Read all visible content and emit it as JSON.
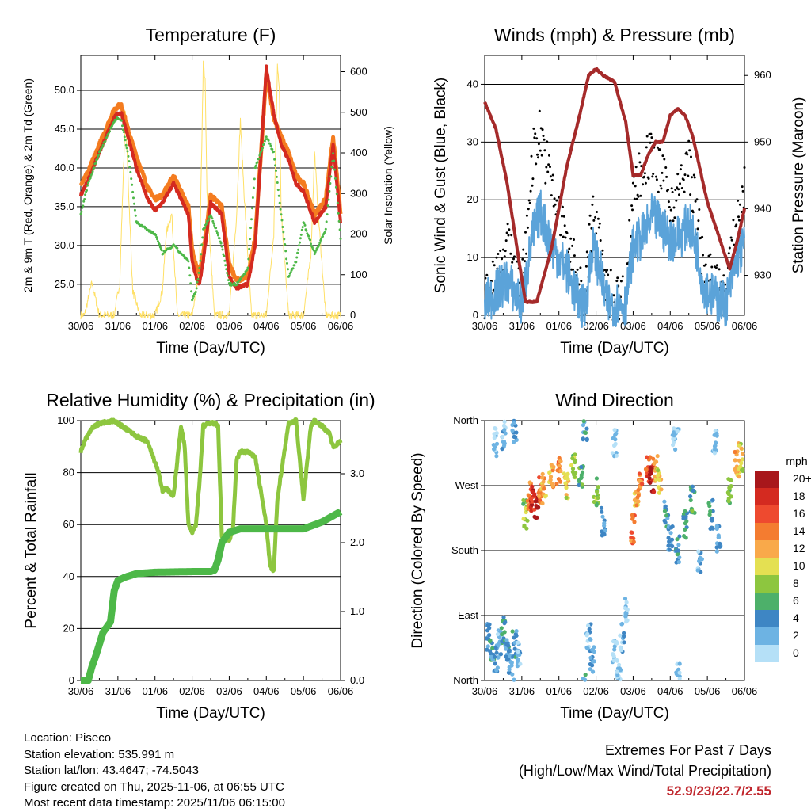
{
  "x_ticks": [
    "30/06",
    "31/06",
    "01/06",
    "02/06",
    "03/06",
    "04/06",
    "05/06",
    "06/06"
  ],
  "colors": {
    "temp_red": "#d42a20",
    "temp_orange": "#f47c20",
    "dewpoint_green": "#4db848",
    "solar_yellow": "#ffe066",
    "gust_black": "#000000",
    "wind_blue": "#5ba3d9",
    "pressure_maroon": "#a52a2a",
    "rh_lightgreen": "#8dc63f",
    "precip_green": "#4db848",
    "extremes_red": "#c0272d"
  },
  "chart_data": [
    {
      "id": "temperature",
      "type": "line",
      "title": "Temperature (F)",
      "xlabel": "Time (Day/UTC)",
      "ylabel": "2m & 9m T (Red, Orange) & 2m Td (Green)",
      "ylabel_right": "Solar Insolation (Yellow)",
      "ylim": [
        21,
        54.5
      ],
      "ylim_right": [
        0,
        640
      ],
      "yticks": [
        "25.0",
        "30.0",
        "35.0",
        "40.0",
        "45.0",
        "50.0"
      ],
      "yticks_right": [
        "0",
        "100",
        "200",
        "300",
        "400",
        "500",
        "600"
      ],
      "series": [
        {
          "name": "2m T",
          "color": "temp_red",
          "x": [
            0,
            0.2,
            0.5,
            0.9,
            1.0,
            1.1,
            1.3,
            1.5,
            1.8,
            2.0,
            2.2,
            2.5,
            2.9,
            3.0,
            3.1,
            3.2,
            3.3,
            3.5,
            3.8,
            4.0,
            4.2,
            4.5,
            4.7,
            5.0,
            5.2,
            5.4,
            5.6,
            5.8,
            6.0,
            6.3,
            6.6,
            6.8,
            7.0
          ],
          "values": [
            36.5,
            38.5,
            42,
            46.5,
            47,
            47,
            43.5,
            40,
            36,
            34.5,
            35.5,
            38,
            34,
            28,
            26,
            25,
            28,
            35.5,
            34,
            26,
            24.5,
            25,
            30,
            53,
            47,
            43,
            41,
            38,
            37,
            33,
            35,
            43,
            33
          ]
        },
        {
          "name": "9m T",
          "color": "temp_orange",
          "x": [
            0,
            0.2,
            0.5,
            0.9,
            1.0,
            1.1,
            1.3,
            1.5,
            1.8,
            2.0,
            2.2,
            2.5,
            2.9,
            3.0,
            3.1,
            3.2,
            3.3,
            3.5,
            3.8,
            4.0,
            4.2,
            4.5,
            4.7,
            5.0,
            5.2,
            5.4,
            5.6,
            5.8,
            6.0,
            6.3,
            6.6,
            6.8,
            7.0
          ],
          "values": [
            38,
            39.5,
            43,
            47.5,
            48,
            48,
            44.5,
            41.5,
            37.5,
            36,
            36.5,
            39,
            35,
            29.5,
            27.5,
            26.5,
            29,
            36.5,
            35,
            27.5,
            25.5,
            26,
            31,
            52,
            46.5,
            44,
            42,
            39,
            38,
            34,
            36,
            44,
            34
          ]
        },
        {
          "name": "2m Td",
          "color": "dewpoint_green",
          "x": [
            0,
            0.2,
            0.5,
            0.9,
            1.0,
            1.1,
            1.3,
            1.5,
            1.8,
            2.0,
            2.2,
            2.5,
            2.9,
            3.0,
            3.1,
            3.2,
            3.3,
            3.5,
            3.8,
            4.0,
            4.2,
            4.5,
            4.7,
            5.0,
            5.2,
            5.4,
            5.6,
            5.8,
            6.0,
            6.3,
            6.6,
            6.8,
            7.0
          ],
          "values": [
            34,
            38,
            42,
            46,
            46.5,
            46,
            41,
            33,
            32,
            31.5,
            29,
            30,
            28,
            23,
            24,
            27,
            32,
            34,
            30,
            25,
            25,
            27,
            40,
            44,
            42,
            34,
            26,
            28,
            33,
            29,
            32,
            42,
            31
          ]
        },
        {
          "name": "Solar",
          "color": "solar_yellow",
          "axis": "right",
          "x": [
            0.1,
            0.3,
            0.5,
            0.9,
            1.05,
            1.2,
            1.4,
            1.6,
            2.0,
            2.2,
            2.3,
            2.45,
            2.6,
            3.0,
            3.2,
            3.3,
            3.35,
            3.4,
            3.6,
            4.0,
            4.2,
            4.3,
            4.4,
            4.6,
            5.0,
            5.2,
            5.3,
            5.35,
            5.4,
            5.6,
            6.0,
            6.2,
            6.3,
            6.4,
            6.6,
            7.0
          ],
          "values": [
            0,
            80,
            0,
            0,
            80,
            500,
            60,
            0,
            0,
            60,
            200,
            250,
            0,
            0,
            120,
            620,
            580,
            300,
            0,
            0,
            250,
            480,
            300,
            0,
            0,
            200,
            620,
            550,
            250,
            0,
            0,
            150,
            400,
            250,
            0,
            0
          ]
        }
      ]
    },
    {
      "id": "winds",
      "type": "line",
      "title": "Winds (mph) & Pressure (mb)",
      "xlabel": "Time (Day/UTC)",
      "ylabel": "Sonic Wind & Gust (Blue, Black)",
      "ylabel_right": "Station Pressure (Maroon)",
      "ylim": [
        0,
        45
      ],
      "ylim_right": [
        924,
        963
      ],
      "yticks": [
        "0",
        "10",
        "20",
        "30",
        "40"
      ],
      "yticks_right": [
        "930",
        "940",
        "950",
        "960"
      ],
      "series": [
        {
          "name": "Sonic Wind",
          "color": "wind_blue",
          "x": [
            0,
            0.3,
            0.6,
            0.9,
            1.0,
            1.3,
            1.5,
            1.8,
            2.0,
            2.2,
            2.5,
            2.7,
            2.9,
            3.1,
            3.3,
            3.6,
            3.8,
            4.0,
            4.3,
            4.5,
            4.7,
            5.0,
            5.3,
            5.5,
            5.7,
            5.9,
            6.2,
            6.5,
            6.8,
            7.0
          ],
          "values": [
            2,
            4,
            6,
            3,
            2,
            14,
            18,
            12,
            10,
            8,
            3,
            1,
            12,
            8,
            2,
            2,
            2,
            12,
            14,
            17,
            16,
            13,
            14,
            16,
            12,
            5,
            3,
            2,
            10,
            12
          ]
        },
        {
          "name": "Gust",
          "color": "gust_black",
          "x": [
            0,
            0.3,
            0.6,
            0.9,
            1.0,
            1.3,
            1.5,
            1.8,
            2.0,
            2.2,
            2.5,
            2.7,
            2.9,
            3.1,
            3.3,
            3.6,
            3.8,
            4.0,
            4.3,
            4.5,
            4.7,
            5.0,
            5.3,
            5.5,
            5.7,
            5.9,
            6.2,
            6.5,
            6.8,
            7.0
          ],
          "values": [
            3,
            8,
            12,
            6,
            4,
            28,
            32,
            22,
            18,
            14,
            6,
            3,
            18,
            12,
            4,
            3,
            3,
            22,
            26,
            28,
            25,
            20,
            22,
            27,
            18,
            8,
            5,
            4,
            16,
            22
          ]
        },
        {
          "name": "Pressure",
          "color": "pressure_maroon",
          "axis": "right",
          "x": [
            0,
            0.3,
            0.6,
            0.9,
            1.1,
            1.4,
            1.8,
            2.2,
            2.6,
            2.8,
            3.0,
            3.2,
            3.5,
            3.8,
            4.0,
            4.2,
            4.4,
            4.6,
            4.8,
            5.0,
            5.2,
            5.4,
            5.6,
            5.8,
            6.0,
            6.3,
            6.6,
            6.8,
            7.0
          ],
          "values": [
            956,
            952,
            944,
            933,
            926,
            926,
            934,
            946,
            955,
            960,
            961,
            960,
            959,
            953,
            945,
            945,
            948,
            950,
            950,
            954,
            955,
            954,
            951,
            946,
            941,
            936,
            931,
            935,
            940
          ]
        }
      ]
    },
    {
      "id": "humidity",
      "type": "line",
      "title": "Relative Humidity (%) & Precipitation (in)",
      "xlabel": "Time (Day/UTC)",
      "ylabel": "Percent & Total Rainfall",
      "ylim": [
        0,
        100
      ],
      "ylim_right": [
        0,
        3.77
      ],
      "yticks": [
        "0",
        "20",
        "40",
        "60",
        "80",
        "100"
      ],
      "yticks_right": [
        "0.0",
        "1.0",
        "2.0",
        "3.0"
      ],
      "series": [
        {
          "name": "RH",
          "color": "rh_lightgreen",
          "x": [
            0,
            0.1,
            0.3,
            0.5,
            0.9,
            1.0,
            1.1,
            1.3,
            1.5,
            1.8,
            2.0,
            2.1,
            2.2,
            2.3,
            2.5,
            2.7,
            2.8,
            2.9,
            3.0,
            3.1,
            3.2,
            3.3,
            3.5,
            3.6,
            3.7,
            3.8,
            4.0,
            4.1,
            4.2,
            4.3,
            4.5,
            4.7,
            5.0,
            5.1,
            5.2,
            5.3,
            5.4,
            5.6,
            5.8,
            6.0,
            6.2,
            6.3,
            6.5,
            6.7,
            6.8,
            7.0
          ],
          "values": [
            88,
            92,
            97,
            99,
            100,
            99,
            98,
            96,
            94,
            92,
            84,
            80,
            73,
            74,
            71,
            98,
            90,
            60,
            57,
            60,
            76,
            98,
            99,
            99,
            98,
            55,
            54,
            58,
            85,
            88,
            88,
            86,
            60,
            44,
            42,
            70,
            80,
            99,
            100,
            70,
            98,
            100,
            98,
            95,
            90,
            92
          ]
        },
        {
          "name": "Total Precip",
          "color": "precip_green",
          "axis": "right",
          "x": [
            0,
            0.2,
            0.3,
            0.4,
            0.6,
            0.8,
            0.9,
            1.0,
            1.2,
            1.5,
            2.0,
            3.0,
            3.5,
            3.6,
            3.7,
            3.8,
            4.0,
            4.3,
            5.0,
            5.5,
            6.0,
            6.5,
            7.0
          ],
          "values": [
            0,
            0,
            0.2,
            0.35,
            0.7,
            0.85,
            1.3,
            1.45,
            1.5,
            1.55,
            1.57,
            1.58,
            1.58,
            1.6,
            1.75,
            2.0,
            2.15,
            2.2,
            2.2,
            2.2,
            2.2,
            2.3,
            2.45
          ]
        }
      ]
    },
    {
      "id": "wind_direction",
      "type": "scatter",
      "title": "Wind Direction",
      "xlabel": "Time (Day/UTC)",
      "ylabel": "Direction (Colored By Speed)",
      "ylim": [
        0,
        360
      ],
      "yticks": [
        "North",
        "East",
        "South",
        "West",
        "North"
      ],
      "colorbar_title": "mph",
      "colorbar_labels": [
        "20+",
        "18",
        "16",
        "14",
        "12",
        "10",
        "8",
        "6",
        "4",
        "2",
        "0"
      ],
      "colorbar_colors": [
        "#a8171b",
        "#d42a20",
        "#ee4a2f",
        "#f47c30",
        "#f9a94a",
        "#e4e052",
        "#8dc63f",
        "#4db06a",
        "#3e86c4",
        "#6db3e3",
        "#b5e0f7"
      ],
      "points": [
        {
          "day": 0.1,
          "dir": 60,
          "speed": 3
        },
        {
          "day": 0.2,
          "dir": 45,
          "speed": 4
        },
        {
          "day": 0.3,
          "dir": 30,
          "speed": 3
        },
        {
          "day": 0.4,
          "dir": 55,
          "speed": 2
        },
        {
          "day": 0.5,
          "dir": 70,
          "speed": 5
        },
        {
          "day": 0.6,
          "dir": 40,
          "speed": 4
        },
        {
          "day": 0.7,
          "dir": 25,
          "speed": 3
        },
        {
          "day": 0.8,
          "dir": 50,
          "speed": 4
        },
        {
          "day": 0.9,
          "dir": 35,
          "speed": 2
        },
        {
          "day": 0.5,
          "dir": 340,
          "speed": 2
        },
        {
          "day": 0.8,
          "dir": 350,
          "speed": 3
        },
        {
          "day": 0.3,
          "dir": 330,
          "speed": 1
        },
        {
          "day": 1.1,
          "dir": 230,
          "speed": 8
        },
        {
          "day": 1.2,
          "dir": 255,
          "speed": 14
        },
        {
          "day": 1.3,
          "dir": 250,
          "speed": 18
        },
        {
          "day": 1.4,
          "dir": 245,
          "speed": 20
        },
        {
          "day": 1.5,
          "dir": 262,
          "speed": 14
        },
        {
          "day": 1.6,
          "dir": 272,
          "speed": 12
        },
        {
          "day": 1.8,
          "dir": 282,
          "speed": 12
        },
        {
          "day": 2.0,
          "dir": 290,
          "speed": 14
        },
        {
          "day": 2.2,
          "dir": 270,
          "speed": 10
        },
        {
          "day": 2.4,
          "dir": 300,
          "speed": 8
        },
        {
          "day": 2.6,
          "dir": 280,
          "speed": 6
        },
        {
          "day": 2.8,
          "dir": 60,
          "speed": 2
        },
        {
          "day": 2.9,
          "dir": 30,
          "speed": 3
        },
        {
          "day": 2.7,
          "dir": 350,
          "speed": 4
        },
        {
          "day": 3.0,
          "dir": 260,
          "speed": 8
        },
        {
          "day": 3.2,
          "dir": 220,
          "speed": 3
        },
        {
          "day": 3.5,
          "dir": 40,
          "speed": 1
        },
        {
          "day": 3.6,
          "dir": 20,
          "speed": 1
        },
        {
          "day": 3.7,
          "dir": 60,
          "speed": 2
        },
        {
          "day": 3.5,
          "dir": 330,
          "speed": 1
        },
        {
          "day": 3.8,
          "dir": 100,
          "speed": 1
        },
        {
          "day": 4.0,
          "dir": 210,
          "speed": 14
        },
        {
          "day": 4.1,
          "dir": 245,
          "speed": 12
        },
        {
          "day": 4.2,
          "dir": 270,
          "speed": 14
        },
        {
          "day": 4.4,
          "dir": 290,
          "speed": 16
        },
        {
          "day": 4.5,
          "dir": 280,
          "speed": 20
        },
        {
          "day": 4.6,
          "dir": 295,
          "speed": 12
        },
        {
          "day": 4.7,
          "dir": 275,
          "speed": 10
        },
        {
          "day": 4.9,
          "dir": 230,
          "speed": 4
        },
        {
          "day": 5.0,
          "dir": 200,
          "speed": 3
        },
        {
          "day": 5.2,
          "dir": 180,
          "speed": 4
        },
        {
          "day": 5.1,
          "dir": 340,
          "speed": 1
        },
        {
          "day": 5.2,
          "dir": 5,
          "speed": 1
        },
        {
          "day": 5.4,
          "dir": 215,
          "speed": 4
        },
        {
          "day": 5.6,
          "dir": 250,
          "speed": 6
        },
        {
          "day": 5.8,
          "dir": 160,
          "speed": 2
        },
        {
          "day": 6.1,
          "dir": 230,
          "speed": 4
        },
        {
          "day": 6.3,
          "dir": 195,
          "speed": 3
        },
        {
          "day": 6.6,
          "dir": 262,
          "speed": 8
        },
        {
          "day": 6.8,
          "dir": 300,
          "speed": 12
        },
        {
          "day": 6.9,
          "dir": 310,
          "speed": 10
        },
        {
          "day": 6.2,
          "dir": 330,
          "speed": 1
        }
      ]
    }
  ],
  "info": {
    "location": "Location: Piseco",
    "elevation": "Station elevation: 535.991 m",
    "latlon": "Station lat/lon: 43.4647; -74.5043",
    "created": "Figure created on Thu, 2025-11-06, at 06:55 UTC",
    "recent": "Most recent data timestamp: 2025/11/06 06:15:00"
  },
  "extremes": {
    "line1": "Extremes For Past 7 Days",
    "line2": "(High/Low/Max Wind/Total Precipitation)",
    "value": "52.9/23/22.7/2.55"
  }
}
